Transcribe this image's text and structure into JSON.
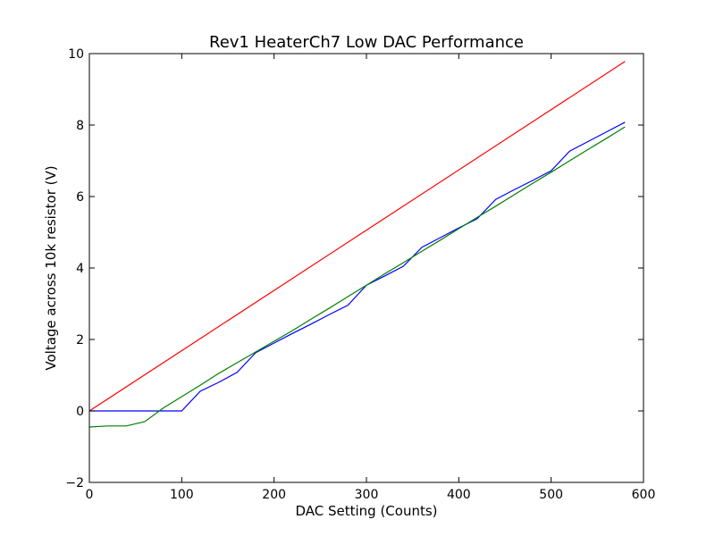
{
  "chart_data": {
    "type": "line",
    "title": "Rev1 HeaterCh7 Low DAC Performance",
    "xlabel": "DAC Setting (Counts)",
    "ylabel": "Voltage across 10k resistor (V)",
    "xlim": [
      0,
      600
    ],
    "ylim": [
      -2,
      10
    ],
    "x_ticks": [
      0,
      100,
      200,
      300,
      400,
      500,
      600
    ],
    "y_ticks": [
      -2,
      0,
      2,
      4,
      6,
      8,
      10
    ],
    "x_tick_labels": [
      "0",
      "100",
      "200",
      "300",
      "400",
      "500",
      "600"
    ],
    "y_tick_labels": [
      "−2",
      "0",
      "2",
      "4",
      "6",
      "8",
      "10"
    ],
    "grid": false,
    "series": [
      {
        "color": "#0000ff",
        "x": [
          0,
          20,
          40,
          60,
          80,
          100,
          120,
          140,
          160,
          180,
          200,
          220,
          240,
          260,
          280,
          300,
          320,
          340,
          360,
          380,
          400,
          420,
          440,
          460,
          480,
          500,
          520,
          540,
          560,
          580
        ],
        "y": [
          0,
          0,
          0,
          0,
          0,
          0,
          0.55,
          0.8,
          1.08,
          1.63,
          1.9,
          2.17,
          2.43,
          2.7,
          2.96,
          3.52,
          3.78,
          4.05,
          4.58,
          4.85,
          5.12,
          5.38,
          5.92,
          6.19,
          6.45,
          6.72,
          7.27,
          7.54,
          7.81,
          8.08
        ]
      },
      {
        "color": "#008000",
        "x": [
          0,
          20,
          40,
          60,
          80,
          100,
          120,
          140,
          160,
          180,
          200,
          220,
          240,
          260,
          280,
          300,
          320,
          340,
          360,
          380,
          400,
          420,
          440,
          460,
          480,
          500,
          520,
          540,
          560,
          580
        ],
        "y": [
          -0.45,
          -0.42,
          -0.42,
          -0.3,
          0.08,
          0.4,
          0.72,
          1.05,
          1.35,
          1.65,
          1.95,
          2.25,
          2.57,
          2.88,
          3.2,
          3.52,
          3.84,
          4.15,
          4.47,
          4.78,
          5.1,
          5.42,
          5.73,
          6.05,
          6.37,
          6.68,
          7.0,
          7.32,
          7.63,
          7.95
        ]
      },
      {
        "color": "#ff0000",
        "x": [
          0,
          580
        ],
        "y": [
          0,
          9.78
        ]
      }
    ]
  }
}
